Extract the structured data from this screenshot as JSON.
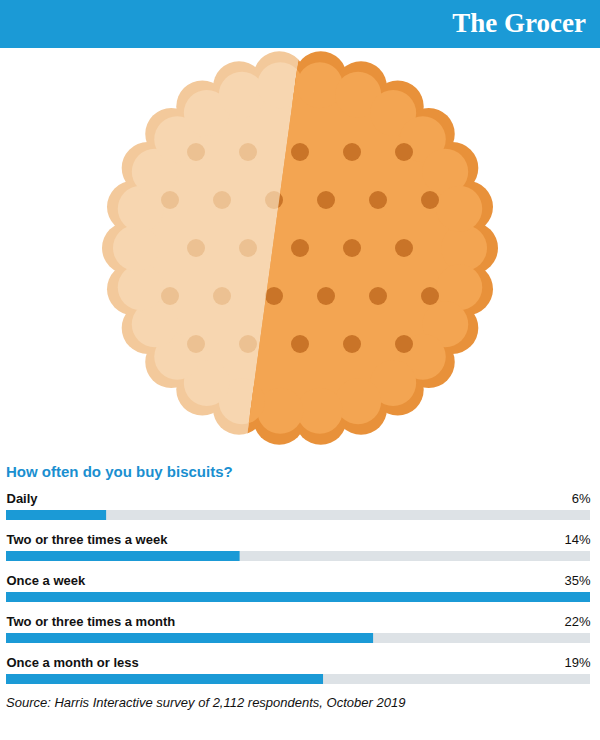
{
  "chart_data": {
    "type": "bar",
    "orientation": "horizontal",
    "header": "The Grocer",
    "title": "How often do you buy biscuits?",
    "categories": [
      "Daily",
      "Two or three times a week",
      "Once a week",
      "Two or three times a month",
      "Once a month or less"
    ],
    "values": [
      6,
      14,
      35,
      22,
      19
    ],
    "value_labels": [
      "6%",
      "14%",
      "35%",
      "22%",
      "19%"
    ],
    "data_labels": true,
    "tick_labels": false,
    "xlim": [
      0,
      35
    ],
    "color": "#1b9ad6",
    "source": "Source: Harris Interactive survey of 2,112 respondents, October 2019"
  }
}
